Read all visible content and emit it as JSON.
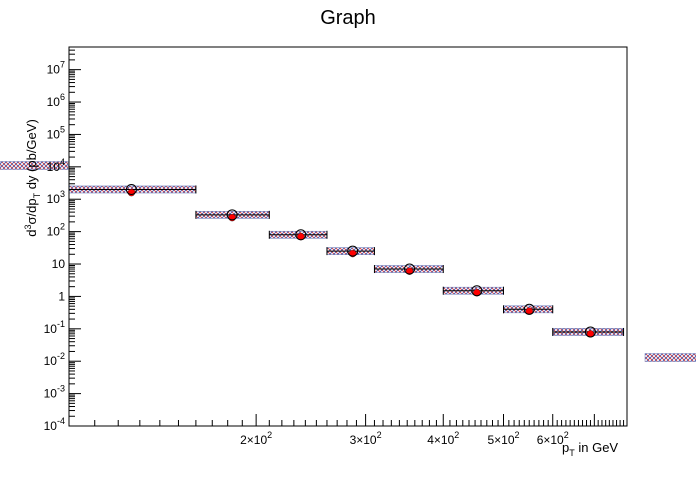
{
  "chart_data": {
    "type": "scatter",
    "title": "Graph",
    "xlabel": "p_T in GeV",
    "ylabel": "d³σ/dp_T dy (pb/GeV)",
    "x_scale": "log",
    "y_scale": "log",
    "xlim": [
      100,
      790
    ],
    "ylim": [
      0.0001,
      50000000
    ],
    "x_ticks": [
      {
        "value": 200,
        "label": "2×10²"
      },
      {
        "value": 300,
        "label": "3×10²"
      },
      {
        "value": 400,
        "label": "4×10²"
      },
      {
        "value": 500,
        "label": "5×10²"
      },
      {
        "value": 600,
        "label": "6×10²"
      }
    ],
    "y_ticks": [
      {
        "value": 0.0001,
        "label": "10⁻⁴"
      },
      {
        "value": 0.001,
        "label": "10⁻³"
      },
      {
        "value": 0.01,
        "label": "10⁻²"
      },
      {
        "value": 0.1,
        "label": "10⁻¹"
      },
      {
        "value": 1,
        "label": "1"
      },
      {
        "value": 10,
        "label": "10"
      },
      {
        "value": 100,
        "label": "10²"
      },
      {
        "value": 1000,
        "label": "10³"
      },
      {
        "value": 10000,
        "label": "10⁴"
      },
      {
        "value": 100000,
        "label": "10⁵"
      },
      {
        "value": 1000000,
        "label": "10⁶"
      },
      {
        "value": 10000000,
        "label": "10⁷"
      }
    ],
    "series": [
      {
        "marker": "open-circle",
        "color": "#000000",
        "points": [
          {
            "x": 126,
            "xlow": 100,
            "xhigh": 160,
            "y": 2000
          },
          {
            "x": 183,
            "xlow": 160,
            "xhigh": 210,
            "y": 330
          },
          {
            "x": 236,
            "xlow": 210,
            "xhigh": 260,
            "y": 80
          },
          {
            "x": 286,
            "xlow": 260,
            "xhigh": 310,
            "y": 25
          },
          {
            "x": 353,
            "xlow": 310,
            "xhigh": 400,
            "y": 7
          },
          {
            "x": 453,
            "xlow": 400,
            "xhigh": 500,
            "y": 1.5
          },
          {
            "x": 550,
            "xlow": 500,
            "xhigh": 600,
            "y": 0.4
          },
          {
            "x": 690,
            "xlow": 600,
            "xhigh": 780,
            "y": 0.08
          }
        ]
      },
      {
        "marker": "filled-circle",
        "color": "#ff0000",
        "points": [
          {
            "x": 126,
            "y": 1600
          },
          {
            "x": 183,
            "y": 270
          },
          {
            "x": 236,
            "y": 70
          },
          {
            "x": 286,
            "y": 21
          },
          {
            "x": 353,
            "y": 6
          },
          {
            "x": 453,
            "y": 1.3
          },
          {
            "x": 550,
            "y": 0.35
          },
          {
            "x": 690,
            "y": 0.07
          }
        ]
      }
    ],
    "out_of_range_bands": [
      {
        "side": "left",
        "y": 11000
      },
      {
        "side": "right",
        "y": 0.013
      }
    ],
    "grid": false,
    "colors": {
      "band_fill": "#6a7ab8",
      "band_hatch": "#d03030",
      "axis": "#000000"
    }
  }
}
